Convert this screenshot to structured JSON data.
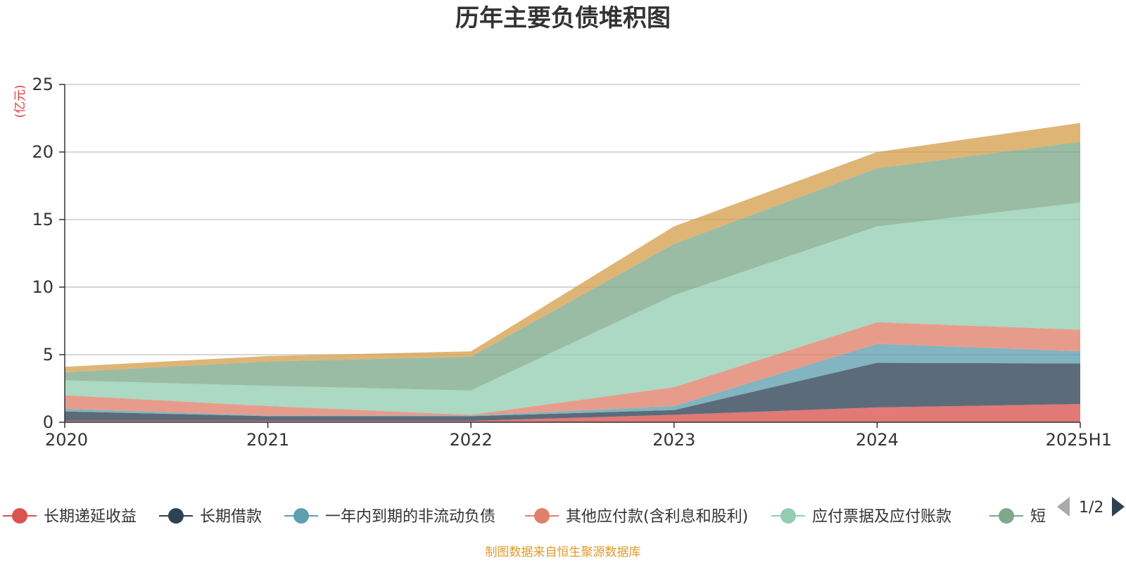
{
  "chart_data": {
    "type": "area",
    "title": "历年主要负债堆积图",
    "ylabel": "(亿元)",
    "xlabel": "",
    "categories": [
      "2020",
      "2021",
      "2022",
      "2023",
      "2024",
      "2025H1"
    ],
    "y_ticks": [
      "0",
      "5",
      "10",
      "15",
      "20",
      "25"
    ],
    "ylim": [
      0,
      25
    ],
    "grid": true,
    "stacked": true,
    "legend_position": "bottom",
    "legend_page": "1/2",
    "series": [
      {
        "name": "长期递延收益",
        "color": "#d9534f",
        "values": [
          0.1,
          0.1,
          0.1,
          0.55,
          1.1,
          1.35
        ]
      },
      {
        "name": "长期借款",
        "color": "#2e4153",
        "values": [
          0.7,
          0.35,
          0.35,
          0.35,
          3.3,
          3.0
        ]
      },
      {
        "name": "一年内到期的非流动负债",
        "color": "#5f9fb0",
        "values": [
          0.2,
          0.05,
          0.05,
          0.3,
          1.4,
          0.9
        ]
      },
      {
        "name": "其他应付款(含利息和股利)",
        "color": "#e0806a",
        "values": [
          1.0,
          0.7,
          0.05,
          1.4,
          1.6,
          1.6
        ]
      },
      {
        "name": "应付票据及应付账款",
        "color": "#94ceb2",
        "values": [
          1.1,
          1.5,
          1.8,
          6.8,
          7.1,
          9.4
        ]
      },
      {
        "name": "短期借款",
        "color": "#7ea98b",
        "values": [
          0.6,
          1.8,
          2.5,
          3.8,
          4.3,
          4.5
        ]
      },
      {
        "name": "",
        "color": "#d6a04e",
        "values": [
          0.4,
          0.4,
          0.4,
          1.3,
          1.2,
          1.4
        ]
      }
    ],
    "legend_items": [
      {
        "label": "长期递延收益",
        "color": "#d9534f"
      },
      {
        "label": "长期借款",
        "color": "#2e4153"
      },
      {
        "label": "一年内到期的非流动负债",
        "color": "#5f9fb0"
      },
      {
        "label": "其他应付款(含利息和股利)",
        "color": "#e0806a"
      },
      {
        "label": "应付票据及应付账款",
        "color": "#94ceb2"
      },
      {
        "label": "短",
        "color": "#7ea98b"
      }
    ]
  },
  "source_note": "制图数据来自恒生聚源数据库"
}
